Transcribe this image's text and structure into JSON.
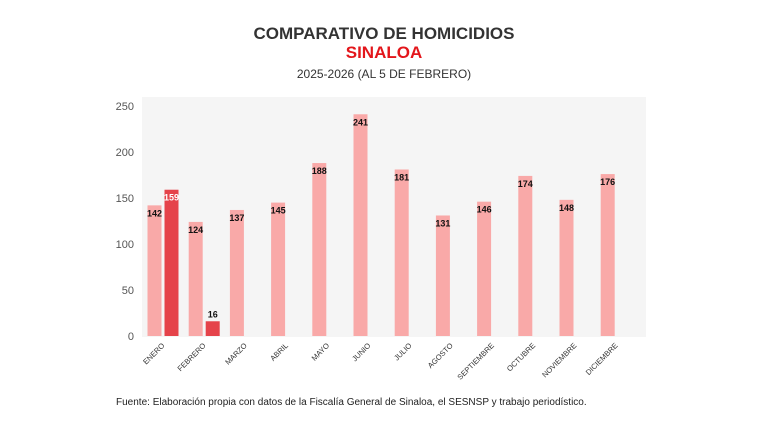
{
  "chart_data": {
    "type": "bar",
    "title": "COMPARATIVO DE HOMICIDIOS",
    "subtitle": "SINALOA",
    "period": "2025-2026 (AL 5 DE FEBRERO)",
    "categories": [
      "ENERO",
      "FEBRERO",
      "MARZO",
      "ABRIL",
      "MAYO",
      "JUNIO",
      "JULIO",
      "AGOSTO",
      "SEPTIEMBRE",
      "OCTUBRE",
      "NOVIEMBRE",
      "DICIEMBRE"
    ],
    "series": [
      {
        "values": [
          142,
          124,
          137,
          145,
          188,
          241,
          181,
          131,
          146,
          174,
          148,
          176
        ],
        "color": "#f9a9a8"
      },
      {
        "values": [
          159,
          16,
          null,
          null,
          null,
          null,
          null,
          null,
          null,
          null,
          null,
          null
        ],
        "color": "#e5434a"
      }
    ],
    "yticks": [
      0,
      50,
      100,
      150,
      200,
      250
    ],
    "ylim": [
      0,
      250
    ],
    "grid": false,
    "legend": "none"
  },
  "source": "Fuente: Elaboración propia con datos de la Fiscalía General de Sinaloa, el SESNSP y trabajo periodístico."
}
